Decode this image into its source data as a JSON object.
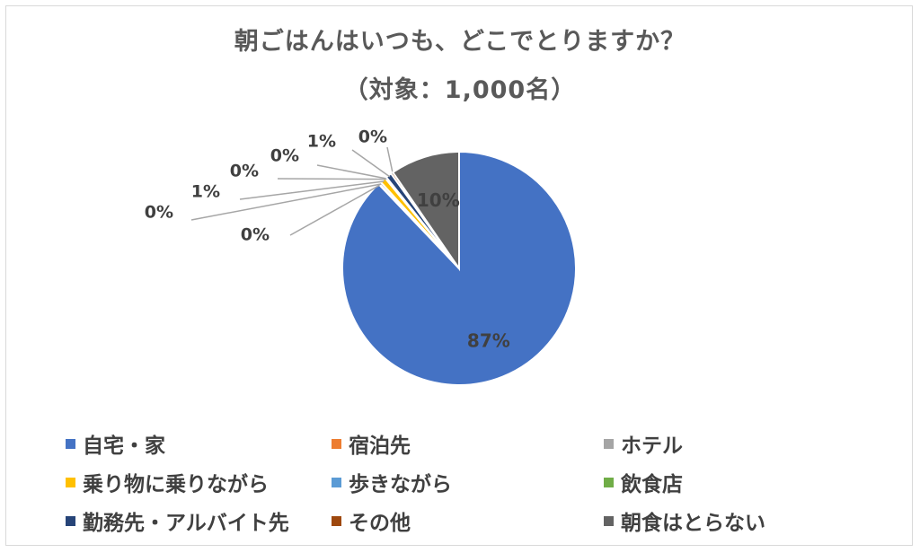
{
  "chart_data": {
    "type": "pie",
    "title": "朝ごはんはいつも、どこでとりますか？",
    "subtitle": "（対象：1,000名）",
    "start_angle_deg": 0,
    "direction": "clockwise",
    "legend_position": "bottom",
    "slices": [
      {
        "label": "自宅・家",
        "value": 87,
        "value_label": "87%",
        "color": "#4472c4"
      },
      {
        "label": "宿泊先",
        "value": 0.1,
        "value_label": "0%",
        "color": "#ed7d31"
      },
      {
        "label": "ホテル",
        "value": 0.3,
        "value_label": "0%",
        "color": "#a5a5a5"
      },
      {
        "label": "乗り物に乗りながら",
        "value": 0.8,
        "value_label": "1%",
        "color": "#ffc000"
      },
      {
        "label": "歩きながら",
        "value": 0.1,
        "value_label": "0%",
        "color": "#5b9bd5"
      },
      {
        "label": "飲食店",
        "value": 0.1,
        "value_label": "0%",
        "color": "#70ad47"
      },
      {
        "label": "勤務先・アルバイト先",
        "value": 0.8,
        "value_label": "1%",
        "color": "#264478"
      },
      {
        "label": "その他",
        "value": 0.3,
        "value_label": "0%",
        "color": "#9e480e"
      },
      {
        "label": "朝食はとらない",
        "value": 9.5,
        "value_label": "10%",
        "color": "#636363"
      }
    ]
  }
}
